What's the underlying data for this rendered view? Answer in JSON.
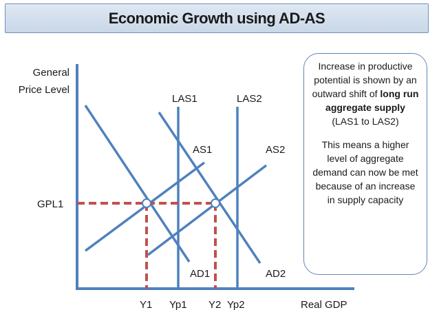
{
  "title": "Economic Growth using AD-AS",
  "axes": {
    "y_label_line1": "General",
    "y_label_line2": "Price Level",
    "x_label": "Real GDP"
  },
  "curves": {
    "las1": "LAS1",
    "las2": "LAS2",
    "as1": "AS1",
    "as2": "AS2",
    "ad1": "AD1",
    "ad2": "AD2"
  },
  "price_levels": {
    "gpl1": "GPL1"
  },
  "output_levels": {
    "y1": "Y1",
    "yp1": "Yp1",
    "y2": "Y2",
    "yp2": "Yp2"
  },
  "note": {
    "part1_before": "Increase in productive potential is shown by an outward shift of ",
    "part1_bold": "long run aggregate supply",
    "part1_after": " (LAS1 to LAS2)",
    "part2": "This means a higher level of aggregate demand can now be met because of an increase in supply capacity"
  },
  "colors": {
    "line": "#4f81bd",
    "dashed": "#c0504d",
    "border": "#5f86b5"
  }
}
